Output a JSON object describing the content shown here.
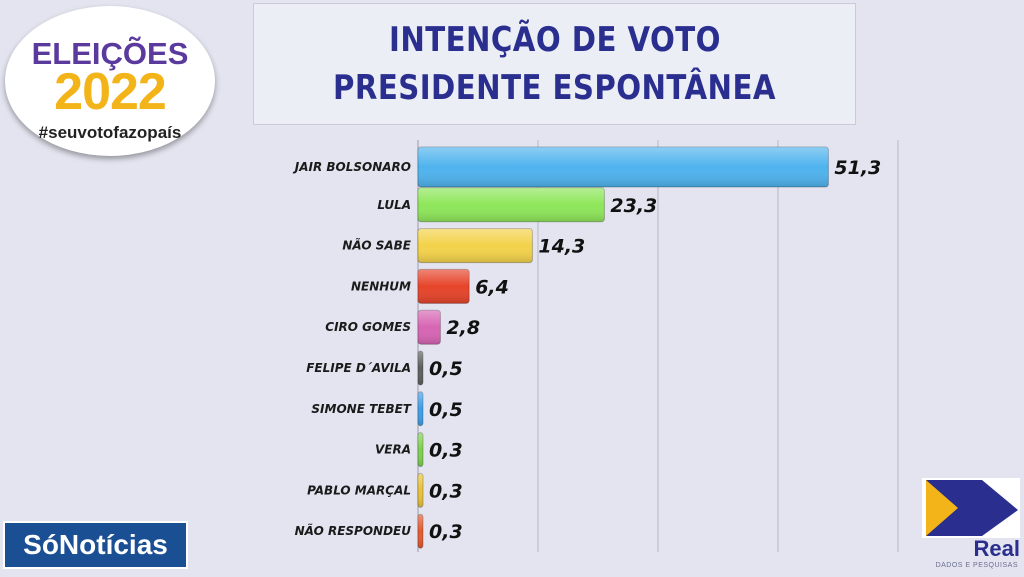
{
  "title": {
    "line1": "INTENÇÃO DE VOTO",
    "line2": "PRESIDENTE ESPONTÂNEA"
  },
  "logos": {
    "eleicoes_line1": "ELEIÇÕES",
    "eleicoes_line2": "2022",
    "eleicoes_hashtag": "#seuvotofazopaís",
    "sonoticias": "SóNotícias",
    "real": "Real",
    "real_sub": "DADOS E PESQUISAS"
  },
  "chart_data": {
    "type": "bar",
    "orientation": "horizontal",
    "title": "INTENÇÃO DE VOTO PRESIDENTE ESPONTÂNEA",
    "categories": [
      "JAIR BOLSONARO",
      "LULA",
      "NÃO SABE",
      "NENHUM",
      "CIRO GOMES",
      "FELIPE D´AVILA",
      "SIMONE TEBET",
      "VERA",
      "PABLO MARÇAL",
      "NÃO RESPONDEU"
    ],
    "values": [
      51.3,
      23.3,
      14.3,
      6.4,
      2.8,
      0.5,
      0.5,
      0.3,
      0.3,
      0.3
    ],
    "value_labels": [
      "51,3",
      "23,3",
      "14,3",
      "6,4",
      "2,8",
      "0,5",
      "0,5",
      "0,3",
      "0,3",
      "0,3"
    ],
    "colors": [
      "#4fb3ee",
      "#8ee65a",
      "#f3d24a",
      "#e6442a",
      "#d765b3",
      "#5e5e5e",
      "#3f9ee8",
      "#7ed04f",
      "#e8c23a",
      "#e45a30"
    ],
    "xlim": [
      0,
      60
    ],
    "grid": true,
    "legend": "none"
  }
}
